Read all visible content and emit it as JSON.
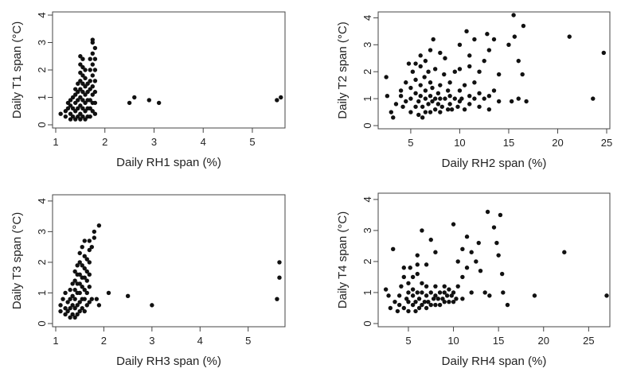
{
  "chart_data": [
    {
      "type": "scatter",
      "xlabel": "Daily RH1 span (%)",
      "ylabel": "Daily T1 span (°C)",
      "xlim": [
        1,
        5.6
      ],
      "ylim": [
        0,
        4
      ],
      "xticks": [
        1,
        2,
        3,
        4,
        5
      ],
      "yticks": [
        0,
        1,
        2,
        3,
        4
      ],
      "grid": false,
      "points": [
        [
          1.1,
          0.4
        ],
        [
          1.2,
          0.3
        ],
        [
          1.2,
          0.5
        ],
        [
          1.25,
          0.6
        ],
        [
          1.25,
          0.8
        ],
        [
          1.3,
          0.2
        ],
        [
          1.3,
          0.4
        ],
        [
          1.3,
          0.7
        ],
        [
          1.3,
          0.9
        ],
        [
          1.35,
          0.3
        ],
        [
          1.35,
          0.6
        ],
        [
          1.35,
          1.0
        ],
        [
          1.4,
          0.2
        ],
        [
          1.4,
          0.5
        ],
        [
          1.4,
          0.8
        ],
        [
          1.4,
          1.1
        ],
        [
          1.4,
          1.3
        ],
        [
          1.45,
          0.3
        ],
        [
          1.45,
          0.6
        ],
        [
          1.45,
          0.9
        ],
        [
          1.45,
          1.2
        ],
        [
          1.45,
          1.5
        ],
        [
          1.5,
          0.2
        ],
        [
          1.5,
          0.4
        ],
        [
          1.5,
          0.7
        ],
        [
          1.5,
          1.0
        ],
        [
          1.5,
          1.3
        ],
        [
          1.5,
          1.6
        ],
        [
          1.5,
          1.9
        ],
        [
          1.5,
          2.2
        ],
        [
          1.5,
          2.5
        ],
        [
          1.55,
          0.3
        ],
        [
          1.55,
          0.6
        ],
        [
          1.55,
          0.9
        ],
        [
          1.55,
          1.2
        ],
        [
          1.55,
          1.5
        ],
        [
          1.55,
          1.8
        ],
        [
          1.55,
          2.1
        ],
        [
          1.55,
          2.4
        ],
        [
          1.6,
          0.2
        ],
        [
          1.6,
          0.5
        ],
        [
          1.6,
          0.8
        ],
        [
          1.6,
          1.1
        ],
        [
          1.6,
          1.4
        ],
        [
          1.6,
          1.7
        ],
        [
          1.6,
          2.0
        ],
        [
          1.65,
          0.3
        ],
        [
          1.65,
          0.6
        ],
        [
          1.65,
          0.9
        ],
        [
          1.65,
          1.2
        ],
        [
          1.65,
          1.5
        ],
        [
          1.7,
          0.3
        ],
        [
          1.7,
          0.6
        ],
        [
          1.7,
          0.9
        ],
        [
          1.7,
          1.3
        ],
        [
          1.7,
          1.6
        ],
        [
          1.7,
          2.0
        ],
        [
          1.7,
          2.4
        ],
        [
          1.75,
          0.5
        ],
        [
          1.75,
          0.8
        ],
        [
          1.75,
          1.1
        ],
        [
          1.75,
          1.4
        ],
        [
          1.75,
          1.8
        ],
        [
          1.75,
          2.2
        ],
        [
          1.75,
          2.6
        ],
        [
          1.75,
          3.0
        ],
        [
          1.75,
          3.1
        ],
        [
          1.8,
          0.4
        ],
        [
          1.8,
          0.8
        ],
        [
          1.8,
          1.2
        ],
        [
          1.8,
          1.6
        ],
        [
          1.8,
          2.0
        ],
        [
          1.8,
          2.4
        ],
        [
          1.8,
          2.8
        ],
        [
          2.5,
          0.8
        ],
        [
          2.6,
          1.0
        ],
        [
          2.9,
          0.9
        ],
        [
          3.1,
          0.8
        ],
        [
          5.5,
          0.9
        ],
        [
          5.58,
          1.0
        ]
      ]
    },
    {
      "type": "scatter",
      "xlabel": "Daily RH2 span (%)",
      "ylabel": "Daily T2 span (°C)",
      "xlim": [
        2,
        25
      ],
      "ylim": [
        0,
        4.1
      ],
      "xticks": [
        5,
        10,
        15,
        20,
        25
      ],
      "yticks": [
        0,
        1,
        2,
        3,
        4
      ],
      "grid": false,
      "points": [
        [
          2.5,
          1.8
        ],
        [
          2.6,
          1.1
        ],
        [
          3,
          0.5
        ],
        [
          3.2,
          0.3
        ],
        [
          3.5,
          0.8
        ],
        [
          4,
          1.1
        ],
        [
          4,
          1.3
        ],
        [
          4.2,
          0.7
        ],
        [
          4.5,
          0.9
        ],
        [
          4.5,
          1.6
        ],
        [
          4.8,
          2.3
        ],
        [
          5,
          0.5
        ],
        [
          5,
          1.0
        ],
        [
          5,
          1.4
        ],
        [
          5.2,
          2.0
        ],
        [
          5.5,
          0.7
        ],
        [
          5.5,
          1.2
        ],
        [
          5.5,
          1.7
        ],
        [
          5.5,
          2.3
        ],
        [
          5.8,
          0.4
        ],
        [
          5.8,
          0.9
        ],
        [
          6,
          1.1
        ],
        [
          6,
          1.5
        ],
        [
          6,
          2.2
        ],
        [
          6,
          2.6
        ],
        [
          6.2,
          0.3
        ],
        [
          6.2,
          0.7
        ],
        [
          6.4,
          1.8
        ],
        [
          6.5,
          0.5
        ],
        [
          6.5,
          1.0
        ],
        [
          6.5,
          1.3
        ],
        [
          6.5,
          2.4
        ],
        [
          6.8,
          0.8
        ],
        [
          6.8,
          2.0
        ],
        [
          7,
          0.5
        ],
        [
          7,
          1.1
        ],
        [
          7,
          1.6
        ],
        [
          7,
          2.8
        ],
        [
          7.2,
          0.9
        ],
        [
          7.2,
          1.4
        ],
        [
          7.3,
          3.2
        ],
        [
          7.5,
          0.6
        ],
        [
          7.5,
          1.0
        ],
        [
          7.5,
          2.1
        ],
        [
          7.8,
          0.8
        ],
        [
          7.8,
          1.2
        ],
        [
          8,
          0.5
        ],
        [
          8,
          1.0
        ],
        [
          8,
          1.5
        ],
        [
          8,
          2.7
        ],
        [
          8.2,
          0.7
        ],
        [
          8.4,
          1.9
        ],
        [
          8.5,
          1.0
        ],
        [
          8.5,
          2.5
        ],
        [
          8.8,
          0.6
        ],
        [
          8.8,
          1.3
        ],
        [
          9,
          0.8
        ],
        [
          9,
          1.1
        ],
        [
          9,
          1.6
        ],
        [
          9.2,
          0.6
        ],
        [
          9.5,
          1.0
        ],
        [
          9.5,
          2.0
        ],
        [
          9.8,
          0.7
        ],
        [
          10,
          0.9
        ],
        [
          10,
          1.3
        ],
        [
          10,
          2.1
        ],
        [
          10,
          3.0
        ],
        [
          10.2,
          1.0
        ],
        [
          10.5,
          0.6
        ],
        [
          10.5,
          1.5
        ],
        [
          10.7,
          3.5
        ],
        [
          11,
          0.8
        ],
        [
          11,
          1.1
        ],
        [
          11,
          2.2
        ],
        [
          11,
          2.6
        ],
        [
          11.5,
          1.0
        ],
        [
          11.5,
          1.6
        ],
        [
          11.5,
          3.2
        ],
        [
          12,
          0.7
        ],
        [
          12,
          1.2
        ],
        [
          12,
          2.0
        ],
        [
          12.5,
          1.0
        ],
        [
          12.5,
          2.4
        ],
        [
          12.8,
          3.4
        ],
        [
          13,
          0.6
        ],
        [
          13,
          1.1
        ],
        [
          13,
          2.8
        ],
        [
          13.5,
          3.2
        ],
        [
          13.5,
          1.3
        ],
        [
          14,
          0.9
        ],
        [
          14,
          1.9
        ],
        [
          15,
          3.0
        ],
        [
          15.3,
          0.9
        ],
        [
          15.5,
          4.1
        ],
        [
          15.6,
          3.3
        ],
        [
          16,
          1.0
        ],
        [
          16,
          2.4
        ],
        [
          16.4,
          1.9
        ],
        [
          16.5,
          3.7
        ],
        [
          16.8,
          0.9
        ],
        [
          21.2,
          3.3
        ],
        [
          23.6,
          1.0
        ],
        [
          24.7,
          2.7
        ]
      ]
    },
    {
      "type": "scatter",
      "xlabel": "Daily RH3 span (%)",
      "ylabel": "Daily T3 span (°C)",
      "xlim": [
        1,
        5.7
      ],
      "ylim": [
        0,
        4.1
      ],
      "xticks": [
        1,
        2,
        3,
        4,
        5
      ],
      "yticks": [
        0,
        1,
        2,
        3,
        4
      ],
      "grid": false,
      "points": [
        [
          1.1,
          0.4
        ],
        [
          1.1,
          0.6
        ],
        [
          1.15,
          0.8
        ],
        [
          1.2,
          0.3
        ],
        [
          1.2,
          0.5
        ],
        [
          1.2,
          1.0
        ],
        [
          1.25,
          0.4
        ],
        [
          1.25,
          0.7
        ],
        [
          1.3,
          0.2
        ],
        [
          1.3,
          0.5
        ],
        [
          1.3,
          0.8
        ],
        [
          1.3,
          1.1
        ],
        [
          1.35,
          0.3
        ],
        [
          1.35,
          0.6
        ],
        [
          1.35,
          0.9
        ],
        [
          1.35,
          1.3
        ],
        [
          1.4,
          0.2
        ],
        [
          1.4,
          0.5
        ],
        [
          1.4,
          0.8
        ],
        [
          1.4,
          1.1
        ],
        [
          1.4,
          1.4
        ],
        [
          1.4,
          1.7
        ],
        [
          1.45,
          0.3
        ],
        [
          1.45,
          0.6
        ],
        [
          1.45,
          1.0
        ],
        [
          1.45,
          1.3
        ],
        [
          1.45,
          1.6
        ],
        [
          1.45,
          1.9
        ],
        [
          1.5,
          0.4
        ],
        [
          1.5,
          0.7
        ],
        [
          1.5,
          1.0
        ],
        [
          1.5,
          1.3
        ],
        [
          1.5,
          1.6
        ],
        [
          1.5,
          2.0
        ],
        [
          1.5,
          2.3
        ],
        [
          1.55,
          0.5
        ],
        [
          1.55,
          0.8
        ],
        [
          1.55,
          1.2
        ],
        [
          1.55,
          1.5
        ],
        [
          1.55,
          1.9
        ],
        [
          1.55,
          2.5
        ],
        [
          1.6,
          0.4
        ],
        [
          1.6,
          0.8
        ],
        [
          1.6,
          1.1
        ],
        [
          1.6,
          1.5
        ],
        [
          1.6,
          1.8
        ],
        [
          1.6,
          2.2
        ],
        [
          1.6,
          2.7
        ],
        [
          1.65,
          0.6
        ],
        [
          1.65,
          1.0
        ],
        [
          1.65,
          1.4
        ],
        [
          1.65,
          1.7
        ],
        [
          1.65,
          2.1
        ],
        [
          1.7,
          0.7
        ],
        [
          1.7,
          1.2
        ],
        [
          1.7,
          1.6
        ],
        [
          1.7,
          2.0
        ],
        [
          1.7,
          2.4
        ],
        [
          1.7,
          2.7
        ],
        [
          1.75,
          0.8
        ],
        [
          1.75,
          2.5
        ],
        [
          1.8,
          2.8
        ],
        [
          1.8,
          3.0
        ],
        [
          1.85,
          0.8
        ],
        [
          1.9,
          0.6
        ],
        [
          1.9,
          3.2
        ],
        [
          2.1,
          1.0
        ],
        [
          2.5,
          0.9
        ],
        [
          3.0,
          0.6
        ],
        [
          5.6,
          0.8
        ],
        [
          5.65,
          1.5
        ],
        [
          5.65,
          2.0
        ]
      ]
    },
    {
      "type": "scatter",
      "xlabel": "Daily RH4 span (%)",
      "ylabel": "Daily T4 span (°C)",
      "xlim": [
        2,
        27
      ],
      "ylim": [
        0,
        4.1
      ],
      "xticks": [
        5,
        10,
        15,
        20,
        25
      ],
      "yticks": [
        0,
        1,
        2,
        3,
        4
      ],
      "grid": false,
      "points": [
        [
          2.5,
          1.1
        ],
        [
          2.8,
          0.9
        ],
        [
          3,
          0.5
        ],
        [
          3.3,
          2.4
        ],
        [
          3.5,
          0.7
        ],
        [
          3.8,
          0.4
        ],
        [
          4,
          0.6
        ],
        [
          4,
          0.9
        ],
        [
          4.2,
          1.2
        ],
        [
          4.5,
          0.5
        ],
        [
          4.5,
          1.5
        ],
        [
          4.5,
          1.8
        ],
        [
          4.8,
          0.8
        ],
        [
          5,
          0.4
        ],
        [
          5,
          0.7
        ],
        [
          5,
          1.0
        ],
        [
          5,
          1.3
        ],
        [
          5.2,
          1.8
        ],
        [
          5.5,
          0.6
        ],
        [
          5.5,
          0.9
        ],
        [
          5.5,
          1.1
        ],
        [
          5.5,
          1.5
        ],
        [
          5.8,
          0.4
        ],
        [
          5.8,
          0.7
        ],
        [
          6,
          1.0
        ],
        [
          6,
          1.6
        ],
        [
          6,
          1.9
        ],
        [
          6,
          2.2
        ],
        [
          6.2,
          0.5
        ],
        [
          6.2,
          0.8
        ],
        [
          6.5,
          0.6
        ],
        [
          6.5,
          1.0
        ],
        [
          6.5,
          1.3
        ],
        [
          6.5,
          3.0
        ],
        [
          6.8,
          0.7
        ],
        [
          7,
          0.5
        ],
        [
          7,
          0.9
        ],
        [
          7,
          1.2
        ],
        [
          7,
          1.9
        ],
        [
          7.2,
          0.7
        ],
        [
          7.5,
          0.6
        ],
        [
          7.5,
          1.0
        ],
        [
          7.5,
          2.7
        ],
        [
          7.8,
          0.8
        ],
        [
          8,
          0.6
        ],
        [
          8,
          0.9
        ],
        [
          8,
          1.2
        ],
        [
          8,
          2.3
        ],
        [
          8.3,
          0.8
        ],
        [
          8.5,
          0.6
        ],
        [
          8.5,
          1.0
        ],
        [
          8.8,
          0.8
        ],
        [
          9,
          0.7
        ],
        [
          9,
          1.0
        ],
        [
          9,
          1.2
        ],
        [
          9.3,
          0.9
        ],
        [
          9.5,
          0.7
        ],
        [
          9.5,
          1.1
        ],
        [
          9.8,
          0.9
        ],
        [
          10,
          0.7
        ],
        [
          10,
          1.0
        ],
        [
          10,
          3.2
        ],
        [
          10.3,
          0.8
        ],
        [
          10.5,
          1.2
        ],
        [
          10.5,
          2.0
        ],
        [
          11,
          0.8
        ],
        [
          11,
          1.5
        ],
        [
          11,
          2.4
        ],
        [
          11.5,
          1.8
        ],
        [
          11.5,
          2.8
        ],
        [
          12,
          1.0
        ],
        [
          12,
          2.3
        ],
        [
          12.5,
          2.0
        ],
        [
          12.8,
          2.6
        ],
        [
          13,
          1.7
        ],
        [
          13.5,
          1.0
        ],
        [
          13.8,
          3.6
        ],
        [
          14,
          0.9
        ],
        [
          14.5,
          3.1
        ],
        [
          14.8,
          2.6
        ],
        [
          15,
          2.2
        ],
        [
          15.2,
          3.5
        ],
        [
          15.4,
          1.6
        ],
        [
          15.5,
          1.0
        ],
        [
          16,
          0.6
        ],
        [
          19,
          0.9
        ],
        [
          22.3,
          2.3
        ],
        [
          27,
          0.9
        ]
      ]
    }
  ]
}
